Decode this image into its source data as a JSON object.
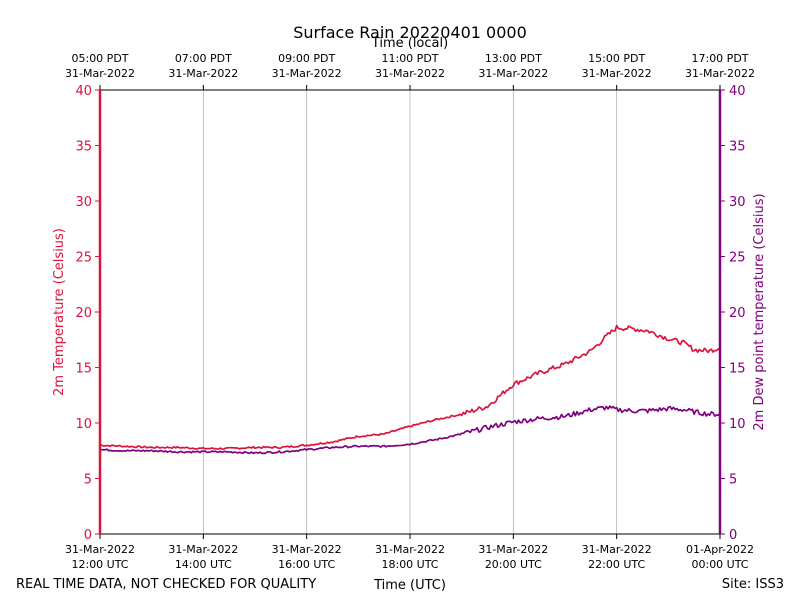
{
  "chart_data": {
    "type": "line",
    "title": "Surface Rain 20220401 0000",
    "top_axis_title": "Time (local)",
    "xlabel": "Time (UTC)",
    "ylabel_left": "2m Temperature (Celsius)",
    "ylabel_right": "2m Dew point temperature (Celsius)",
    "ylim": [
      0,
      40
    ],
    "yticks": [
      0,
      5,
      10,
      15,
      20,
      25,
      30,
      35,
      40
    ],
    "xlim_hours_utc": [
      12,
      24
    ],
    "grid": "vertical",
    "bottom_ticks": [
      {
        "hour": 12,
        "date": "31-Mar-2022",
        "time": "12:00 UTC"
      },
      {
        "hour": 14,
        "date": "31-Mar-2022",
        "time": "14:00 UTC"
      },
      {
        "hour": 16,
        "date": "31-Mar-2022",
        "time": "16:00 UTC"
      },
      {
        "hour": 18,
        "date": "31-Mar-2022",
        "time": "18:00 UTC"
      },
      {
        "hour": 20,
        "date": "31-Mar-2022",
        "time": "20:00 UTC"
      },
      {
        "hour": 22,
        "date": "31-Mar-2022",
        "time": "22:00 UTC"
      },
      {
        "hour": 24,
        "date": "01-Apr-2022",
        "time": "00:00 UTC"
      }
    ],
    "top_ticks": [
      {
        "hour": 12,
        "time": "05:00 PDT",
        "date": "31-Mar-2022"
      },
      {
        "hour": 14,
        "time": "07:00 PDT",
        "date": "31-Mar-2022"
      },
      {
        "hour": 16,
        "time": "09:00 PDT",
        "date": "31-Mar-2022"
      },
      {
        "hour": 18,
        "time": "11:00 PDT",
        "date": "31-Mar-2022"
      },
      {
        "hour": 20,
        "time": "13:00 PDT",
        "date": "31-Mar-2022"
      },
      {
        "hour": 22,
        "time": "15:00 PDT",
        "date": "31-Mar-2022"
      },
      {
        "hour": 24,
        "time": "17:00 PDT",
        "date": "31-Mar-2022"
      }
    ],
    "series": [
      {
        "name": "2m Temperature",
        "color": "#dc143c",
        "x": [
          12,
          12.5,
          13,
          13.5,
          14,
          14.5,
          15,
          15.5,
          16,
          16.5,
          17,
          17.5,
          18,
          18.5,
          19,
          19.5,
          20,
          20.5,
          21,
          21.5,
          21.8,
          22,
          22.3,
          22.6,
          23,
          23.3,
          23.5,
          23.8,
          24
        ],
        "values": [
          8.0,
          7.9,
          7.8,
          7.8,
          7.7,
          7.7,
          7.8,
          7.8,
          8.0,
          8.3,
          8.8,
          9.0,
          9.7,
          10.3,
          10.8,
          11.5,
          13.5,
          14.5,
          15.3,
          16.5,
          17.8,
          18.6,
          18.5,
          18.3,
          17.6,
          17.2,
          16.6,
          16.5,
          16.8
        ]
      },
      {
        "name": "2m Dew point temperature",
        "color": "#800080",
        "x": [
          12,
          12.5,
          13,
          13.5,
          14,
          14.5,
          15,
          15.5,
          16,
          16.5,
          17,
          17.5,
          18,
          18.5,
          19,
          19.5,
          20,
          20.5,
          21,
          21.5,
          21.8,
          22,
          22.3,
          22.6,
          23,
          23.3,
          23.5,
          23.8,
          24
        ],
        "values": [
          7.6,
          7.5,
          7.5,
          7.4,
          7.4,
          7.4,
          7.3,
          7.4,
          7.6,
          7.8,
          7.9,
          7.9,
          8.1,
          8.5,
          9.0,
          9.6,
          10.1,
          10.4,
          10.6,
          11.2,
          11.4,
          11.2,
          11.1,
          11.1,
          11.3,
          11.2,
          11.0,
          10.8,
          10.8
        ]
      }
    ]
  },
  "footer": {
    "left_note": "REAL TIME DATA, NOT CHECKED FOR QUALITY",
    "site": "Site: ISS3"
  },
  "colors": {
    "temperature": "#dc143c",
    "dewpoint": "#800080",
    "grid": "#b0b0b0"
  }
}
